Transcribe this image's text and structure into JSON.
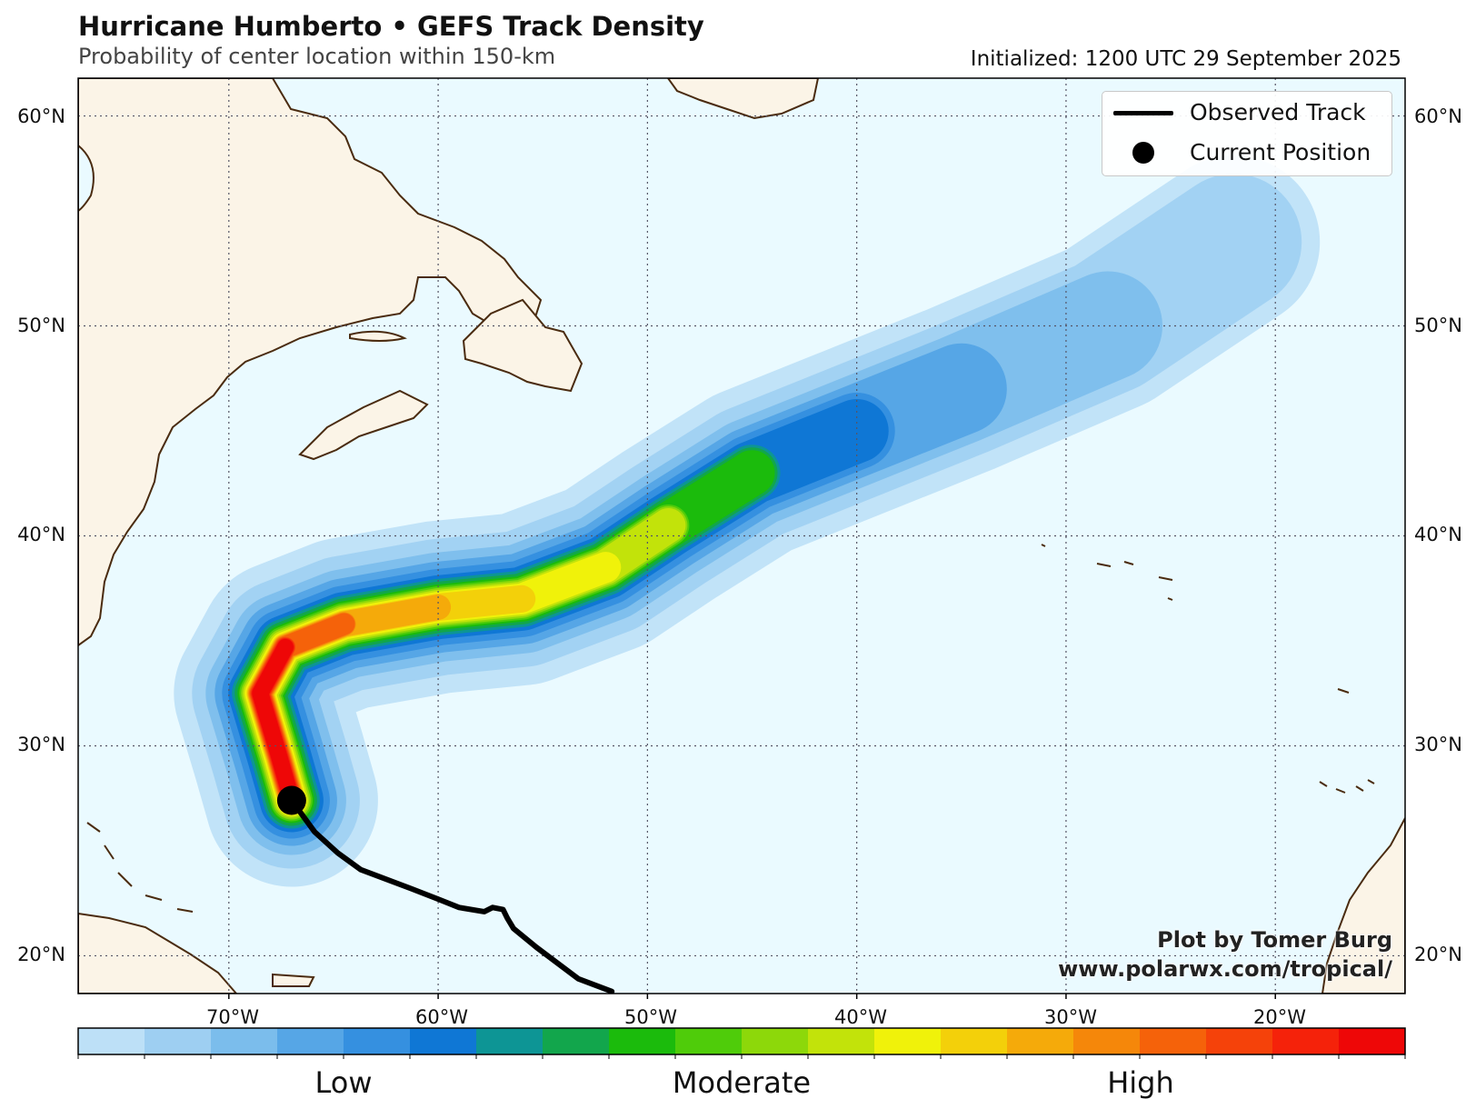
{
  "header": {
    "title": "Hurricane Humberto • GEFS Track Density",
    "subtitle": "Probability of center location within 150-km",
    "initialized": "Initialized: 1200 UTC 29 September 2025"
  },
  "axes": {
    "lat_labels": [
      "60°N",
      "50°N",
      "40°N",
      "30°N",
      "20°N"
    ],
    "lon_labels": [
      "70°W",
      "60°W",
      "50°W",
      "40°W",
      "30°W",
      "20°W"
    ],
    "lat_range": [
      18.2,
      61.8
    ],
    "lon_range": [
      -77.2,
      -13.8
    ],
    "gridlines": true
  },
  "legend": {
    "observed_track": "Observed Track",
    "current_position": "Current Position"
  },
  "credit": {
    "line1": "Plot by Tomer Burg",
    "line2": "www.polarwx.com/tropical/"
  },
  "colorbar": {
    "labels": [
      "Low",
      "Moderate",
      "High"
    ],
    "colors": [
      "#bde0f7",
      "#9ecff2",
      "#7bbdec",
      "#56a6e6",
      "#3590e0",
      "#0f77d5",
      "#0d9595",
      "#12a64c",
      "#1bbb0c",
      "#4fcc0a",
      "#8dd80a",
      "#c2e30a",
      "#f0f20a",
      "#f3d00a",
      "#f5aa0a",
      "#f5870a",
      "#f5620a",
      "#f5420a",
      "#f5220a",
      "#ee0707"
    ],
    "land": "#fbf4e7",
    "ocean": "#eafaff",
    "coast": "#4a2b10"
  },
  "storm": {
    "current_position": {
      "lat": 27.4,
      "lon": -67.0
    },
    "observed_track": [
      {
        "lat": 18.3,
        "lon": -51.7
      },
      {
        "lat": 18.9,
        "lon": -53.3
      },
      {
        "lat": 20.4,
        "lon": -55.3
      },
      {
        "lat": 21.3,
        "lon": -56.4
      },
      {
        "lat": 21.8,
        "lon": -56.7
      },
      {
        "lat": 22.2,
        "lon": -56.9
      },
      {
        "lat": 22.3,
        "lon": -57.4
      },
      {
        "lat": 22.1,
        "lon": -57.8
      },
      {
        "lat": 22.3,
        "lon": -59.0
      },
      {
        "lat": 22.7,
        "lon": -60.0
      },
      {
        "lat": 23.2,
        "lon": -61.3
      },
      {
        "lat": 24.1,
        "lon": -63.7
      },
      {
        "lat": 24.9,
        "lon": -64.8
      },
      {
        "lat": 25.9,
        "lon": -65.9
      },
      {
        "lat": 27.4,
        "lon": -67.0
      }
    ],
    "density_core_path": [
      {
        "lat": 27.4,
        "lon": -67.0
      },
      {
        "lat": 29.5,
        "lon": -67.6
      },
      {
        "lat": 32.5,
        "lon": -68.5
      },
      {
        "lat": 34.7,
        "lon": -67.3
      },
      {
        "lat": 35.8,
        "lon": -64.5
      },
      {
        "lat": 36.6,
        "lon": -60.0
      },
      {
        "lat": 37.0,
        "lon": -56.0
      },
      {
        "lat": 38.5,
        "lon": -52.0
      },
      {
        "lat": 40.5,
        "lon": -49.0
      },
      {
        "lat": 43.0,
        "lon": -45.0
      },
      {
        "lat": 45.0,
        "lon": -40.0
      },
      {
        "lat": 47.0,
        "lon": -35.0
      },
      {
        "lat": 50.0,
        "lon": -28.0
      },
      {
        "lat": 54.0,
        "lon": -22.0
      }
    ]
  }
}
